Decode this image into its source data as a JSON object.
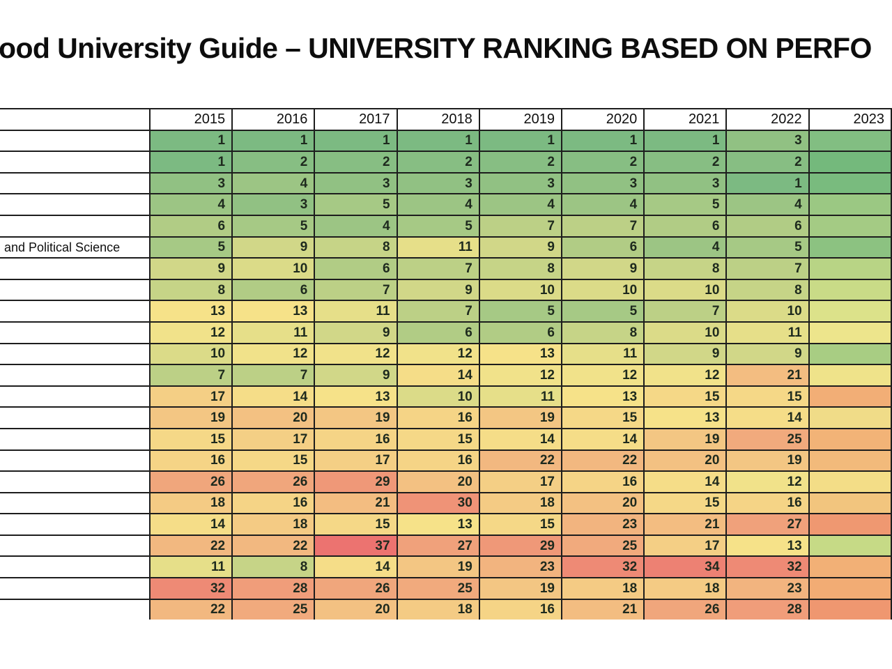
{
  "title": "ood University Guide – UNIVERSITY RANKING BASED ON PERFO",
  "table": {
    "name_column_header": "",
    "years": [
      "2015",
      "2016",
      "2017",
      "2018",
      "2019",
      "2020",
      "2021",
      "2022",
      "2023"
    ],
    "last_year_partially_visible": true,
    "rows": [
      {
        "label": "",
        "ranks": [
          1,
          1,
          1,
          1,
          1,
          1,
          1,
          3
        ]
      },
      {
        "label": "",
        "ranks": [
          1,
          2,
          2,
          2,
          2,
          2,
          2,
          2
        ]
      },
      {
        "label": "",
        "ranks": [
          3,
          4,
          3,
          3,
          3,
          3,
          3,
          1
        ]
      },
      {
        "label": "",
        "ranks": [
          4,
          3,
          5,
          4,
          4,
          4,
          5,
          4
        ]
      },
      {
        "label": "",
        "ranks": [
          6,
          5,
          4,
          5,
          7,
          7,
          6,
          6
        ]
      },
      {
        "label": "and Political Science",
        "ranks": [
          5,
          9,
          8,
          11,
          9,
          6,
          4,
          5
        ]
      },
      {
        "label": "",
        "ranks": [
          9,
          10,
          6,
          7,
          8,
          9,
          8,
          7
        ]
      },
      {
        "label": "",
        "ranks": [
          8,
          6,
          7,
          9,
          10,
          10,
          10,
          8
        ]
      },
      {
        "label": "",
        "ranks": [
          13,
          13,
          11,
          7,
          5,
          5,
          7,
          10
        ]
      },
      {
        "label": "",
        "ranks": [
          12,
          11,
          9,
          6,
          6,
          8,
          10,
          11
        ]
      },
      {
        "label": "",
        "ranks": [
          10,
          12,
          12,
          12,
          13,
          11,
          9,
          9
        ]
      },
      {
        "label": "",
        "ranks": [
          7,
          7,
          9,
          14,
          12,
          12,
          12,
          21
        ]
      },
      {
        "label": "",
        "ranks": [
          17,
          14,
          13,
          10,
          11,
          13,
          15,
          15
        ]
      },
      {
        "label": "",
        "ranks": [
          19,
          20,
          19,
          16,
          19,
          15,
          13,
          14
        ]
      },
      {
        "label": "",
        "ranks": [
          15,
          17,
          16,
          15,
          14,
          14,
          19,
          25
        ]
      },
      {
        "label": "",
        "ranks": [
          16,
          15,
          17,
          16,
          22,
          22,
          20,
          19
        ]
      },
      {
        "label": "",
        "ranks": [
          26,
          26,
          29,
          20,
          17,
          16,
          14,
          12
        ]
      },
      {
        "label": "",
        "ranks": [
          18,
          16,
          21,
          30,
          18,
          20,
          15,
          16
        ]
      },
      {
        "label": "",
        "ranks": [
          14,
          18,
          15,
          13,
          15,
          23,
          21,
          27
        ]
      },
      {
        "label": "",
        "ranks": [
          22,
          22,
          37,
          27,
          29,
          25,
          17,
          13
        ]
      },
      {
        "label": "",
        "ranks": [
          11,
          8,
          14,
          19,
          23,
          32,
          34,
          32
        ]
      },
      {
        "label": "",
        "ranks": [
          32,
          28,
          26,
          25,
          19,
          18,
          18,
          23
        ]
      },
      {
        "label": "",
        "ranks": [
          22,
          25,
          20,
          18,
          16,
          21,
          26,
          28
        ]
      }
    ],
    "partial_year_colors": [
      "#82BE82",
      "#74B97C",
      "#79BB7E",
      "#9BC883",
      "#A4CB84",
      "#8CC281",
      "#B8D485",
      "#C9DB87",
      "#DCE28A",
      "#EDE58C",
      "#A8CD83",
      "#EFE38A",
      "#F2AE76",
      "#F0DC88",
      "#F2B377",
      "#F2BA7B",
      "#F3DD87",
      "#F2C57E",
      "#EF9871",
      "#C6DA86",
      "#F2B076",
      "#F2AC74",
      "#EF9770"
    ]
  },
  "heatmap_scale": {
    "min_value": 1,
    "min_color": "#7CBA82",
    "mid_value": 12.5,
    "mid_color": "#F6E48A",
    "max_value": 37,
    "max_color": "#EC7370"
  },
  "layout_colors": {
    "border": "#1d1d1d",
    "background": "#ffffff",
    "text": "#0f0f0f"
  }
}
